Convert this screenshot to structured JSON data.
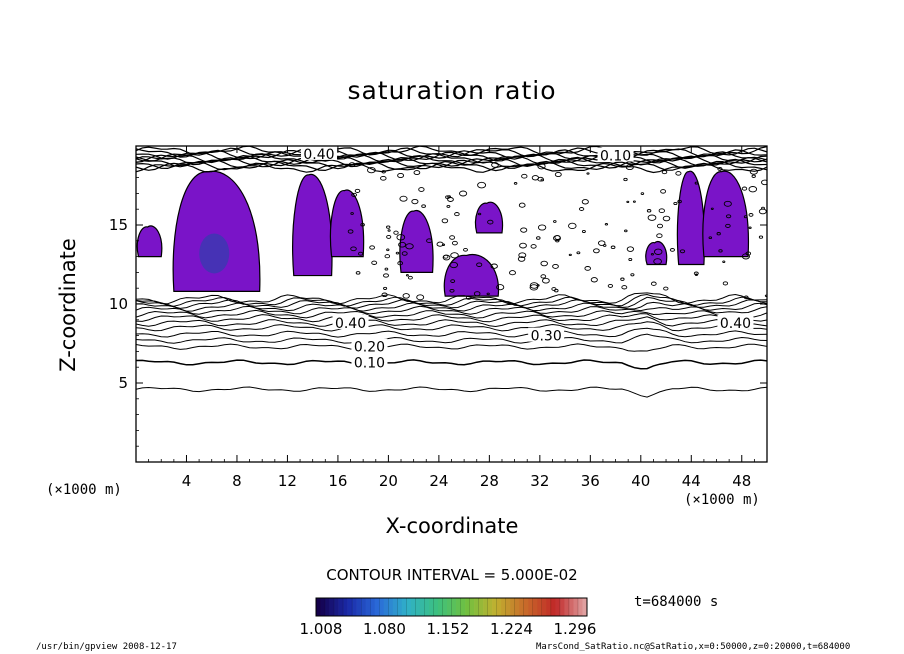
{
  "chart_data": {
    "type": "contour",
    "title": "saturation ratio",
    "xlabel": "X-coordinate",
    "ylabel": "Z-coordinate",
    "x_unit": "(×1000 m)",
    "y_unit": "(×1000 m)",
    "xlim": [
      0,
      50
    ],
    "ylim": [
      0,
      20
    ],
    "x_ticks": [
      4,
      8,
      12,
      16,
      20,
      24,
      28,
      32,
      36,
      40,
      44,
      48
    ],
    "y_ticks": [
      5,
      10,
      15
    ],
    "contour_interval_text": "CONTOUR INTERVAL = 5.000E-02",
    "contour_labels": [
      "0.10",
      "0.20",
      "0.30",
      "0.40",
      "0.40",
      "0.40",
      "0.10"
    ],
    "colorbar": {
      "ticks": [
        "1.008",
        "1.080",
        "1.152",
        "1.224",
        "1.296"
      ],
      "colors": [
        "#14004a",
        "#1a2aa8",
        "#2a6ad8",
        "#30b0c8",
        "#3cc080",
        "#70c040",
        "#c0b030",
        "#c86a2a",
        "#c02828",
        "#e0a0a0"
      ]
    },
    "fill_color": "#7a14c8",
    "fill_core_color": "#3a3ab0",
    "time_label": "t=684000 s",
    "footer_left": "/usr/bin/gpview  2008-12-17",
    "footer_right": "MarsCond_SatRatio.nc@SatRatio,x=0:50000,z=0:20000,t=684000"
  }
}
